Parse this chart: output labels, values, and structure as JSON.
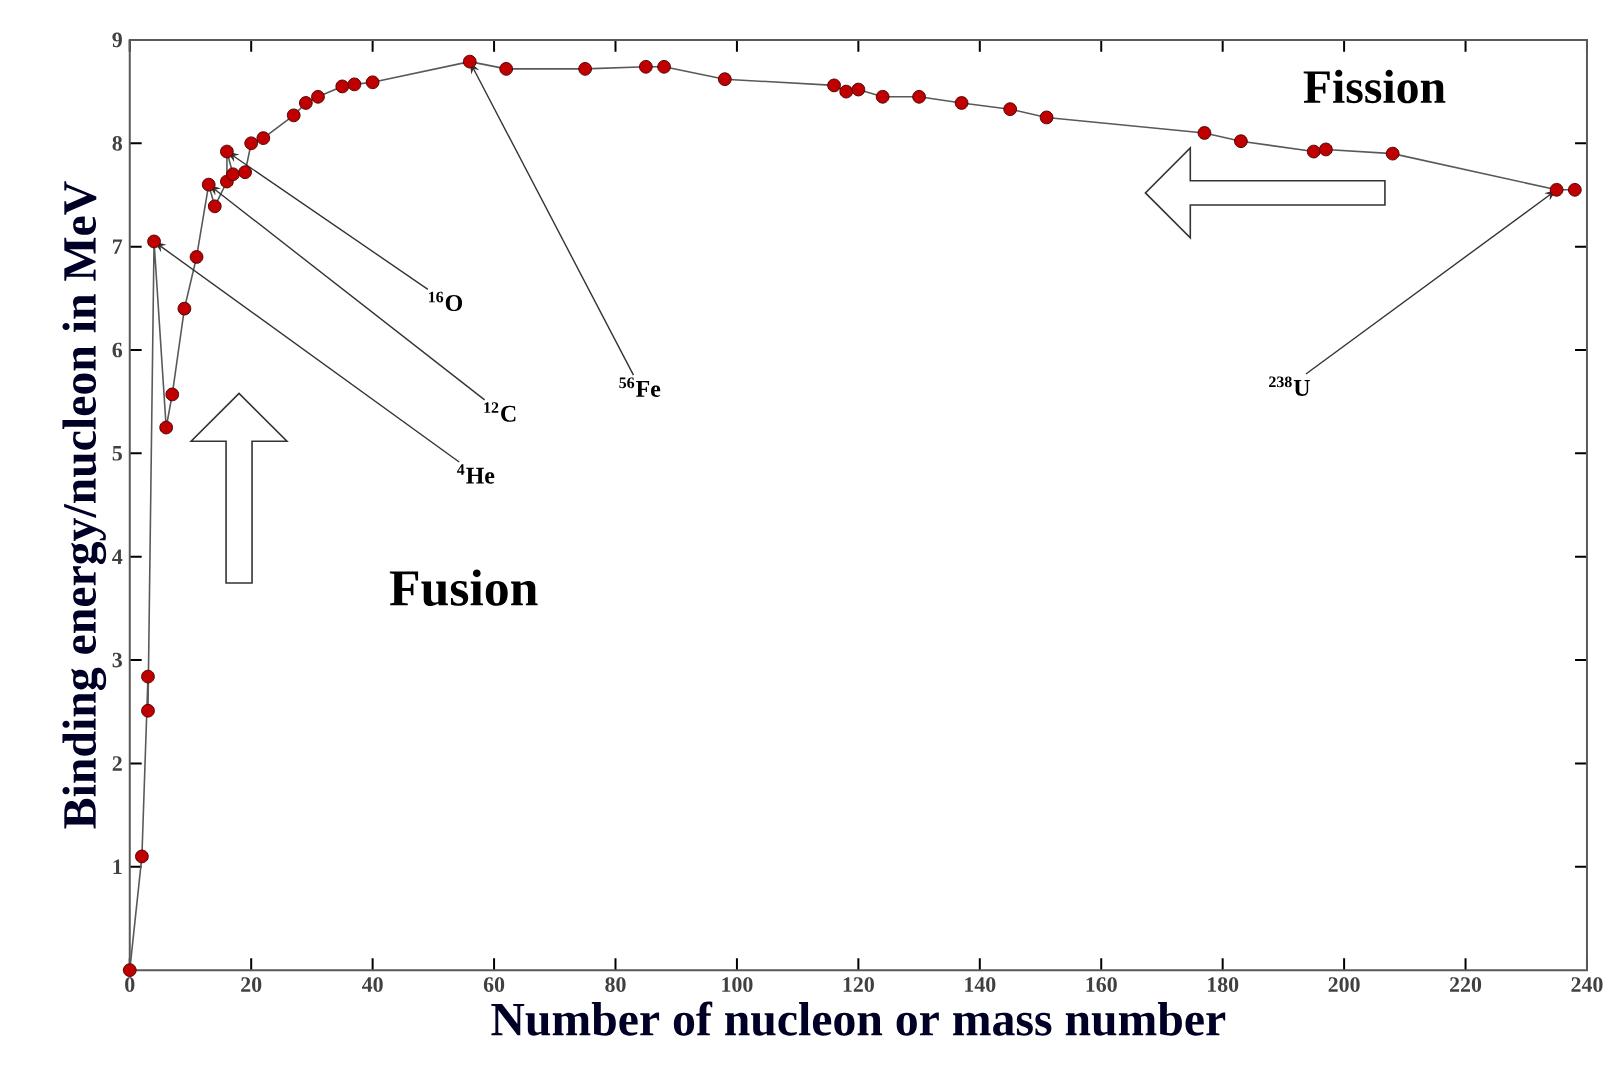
{
  "chart_data": {
    "type": "line",
    "xlabel": "Number of nucleon or mass number",
    "ylabel": "Binding energy/nucleon in MeV",
    "xlim": [
      0,
      240
    ],
    "ylim": [
      0,
      9
    ],
    "xticks": [
      0,
      20,
      40,
      60,
      80,
      100,
      120,
      140,
      160,
      180,
      200,
      220,
      240
    ],
    "yticks": [
      1,
      2,
      3,
      4,
      5,
      6,
      7,
      8,
      9
    ],
    "grid": false,
    "marker": "circle",
    "line_style": "solid",
    "series": [
      {
        "color": "#c00000",
        "x": [
          0,
          2,
          3,
          3,
          4,
          6,
          7,
          9,
          11,
          13,
          14,
          16,
          16,
          17,
          19,
          20,
          22,
          27,
          29,
          31,
          35,
          37,
          40,
          56,
          62,
          75,
          85,
          88,
          98,
          116,
          118,
          120,
          124,
          130,
          137,
          145,
          151,
          177,
          183,
          195,
          197,
          208,
          235,
          238
        ],
        "values": [
          0,
          1.1,
          2.84,
          2.51,
          7.05,
          5.25,
          5.57,
          6.4,
          6.9,
          7.6,
          7.39,
          7.63,
          7.92,
          7.7,
          7.72,
          8.0,
          8.05,
          8.27,
          8.39,
          8.45,
          8.55,
          8.57,
          8.59,
          8.79,
          8.72,
          8.72,
          8.74,
          8.74,
          8.62,
          8.56,
          8.5,
          8.52,
          8.45,
          8.45,
          8.39,
          8.33,
          8.25,
          8.1,
          8.02,
          7.92,
          7.94,
          7.9,
          7.55,
          7.55
        ]
      }
    ],
    "annotations": [
      {
        "text": "$^{16}$O",
        "x": 16,
        "y": 7.92
      },
      {
        "text": "$^{12}$C",
        "x": 13,
        "y": 7.6
      },
      {
        "text": "$^{4}$He",
        "x": 4,
        "y": 7.05
      },
      {
        "text": "$^{56}$Fe",
        "x": 56,
        "y": 8.79
      },
      {
        "text": "$^{238}$U",
        "x": 235,
        "y": 7.55
      },
      "Fusion",
      "Fission"
    ]
  }
}
